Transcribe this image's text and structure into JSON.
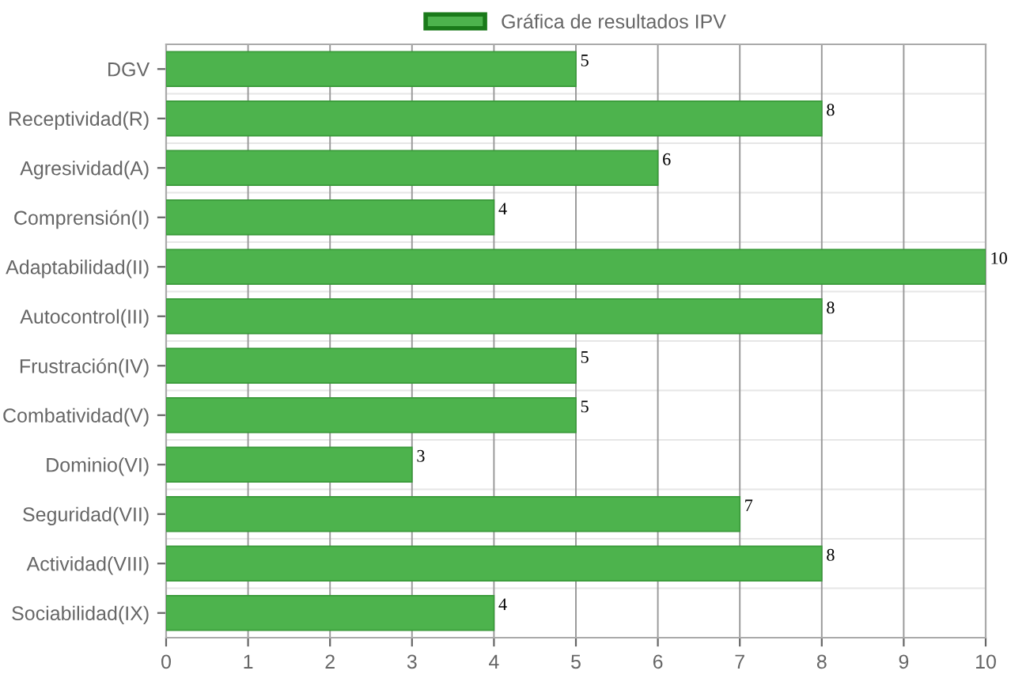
{
  "chart_data": {
    "type": "bar",
    "orientation": "horizontal",
    "categories": [
      "DGV",
      "Receptividad(R)",
      "Agresividad(A)",
      "Comprensión(I)",
      "Adaptabilidad(II)",
      "Autocontrol(III)",
      "Frustración(IV)",
      "Combatividad(V)",
      "Dominio(VI)",
      "Seguridad(VII)",
      "Actividad(VIII)",
      "Sociabilidad(IX)"
    ],
    "series": [
      {
        "name": "Gráfica de resultados IPV",
        "color": "#4db34d",
        "values": [
          5,
          8,
          6,
          4,
          10,
          8,
          5,
          5,
          3,
          7,
          8,
          4
        ]
      }
    ],
    "xlim": [
      0,
      10
    ],
    "xticks": [
      0,
      1,
      2,
      3,
      4,
      5,
      6,
      7,
      8,
      9,
      10
    ],
    "grid": true,
    "legend": "top",
    "data_labels": true
  }
}
